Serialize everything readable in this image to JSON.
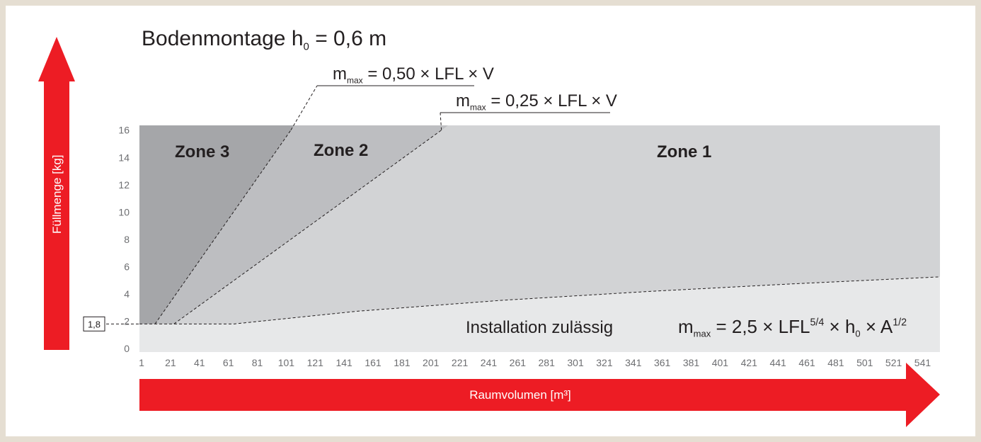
{
  "chart_data": {
    "type": "area",
    "title": [
      {
        "t": "Bodenmontage h"
      },
      {
        "t": "0",
        "shift": "sub"
      },
      {
        "t": " = 0,6 m"
      }
    ],
    "ylabel": "Füllmenge [kg]",
    "xlabel": "Raumvolumen [m³]",
    "xlim": [
      -0.5,
      553
    ],
    "ylim": [
      -0.26,
      16.35
    ],
    "xticks": [
      1,
      21,
      41,
      61,
      81,
      101,
      121,
      141,
      161,
      181,
      201,
      221,
      241,
      261,
      281,
      301,
      321,
      341,
      361,
      381,
      401,
      421,
      441,
      461,
      481,
      501,
      521,
      541
    ],
    "yticks": [
      0,
      2,
      4,
      6,
      8,
      10,
      12,
      14,
      16
    ],
    "threshold": {
      "value": 1.8,
      "label": "1,8"
    },
    "base": {
      "name": "Installation zulässig",
      "color": "#e7e8e9"
    },
    "zones": [
      {
        "name": "Zone 3",
        "color": "#a5a6a9",
        "line": 0
      },
      {
        "name": "Zone 2",
        "color": "#bdbec1",
        "line": 1
      },
      {
        "name": "Zone 1",
        "color": "#d2d3d5",
        "line": 2
      }
    ],
    "lines": [
      {
        "label": [
          {
            "t": "m"
          },
          {
            "t": "max",
            "shift": "sub"
          },
          {
            "t": " = 0,50 × LFL × V"
          }
        ],
        "x": [
          10.3,
          104.2
        ],
        "values": [
          1.8,
          16
        ]
      },
      {
        "label": [
          {
            "t": "m"
          },
          {
            "t": "max",
            "shift": "sub"
          },
          {
            "t": " = 0,25 × LFL × V"
          }
        ],
        "x": [
          23.4,
          208.3
        ],
        "values": [
          1.8,
          16
        ]
      },
      {
        "label": [
          {
            "t": "m"
          },
          {
            "t": "max",
            "shift": "sub"
          },
          {
            "t": " = 2,5 × LFL"
          },
          {
            "t": "5/4",
            "shift": "super"
          },
          {
            "t": " × h"
          },
          {
            "t": "0",
            "shift": "sub"
          },
          {
            "t": " × A"
          },
          {
            "t": "1/2",
            "shift": "super"
          }
        ],
        "x": [
          -0.5,
          65,
          150,
          250,
          350,
          450,
          553
        ],
        "values": [
          1.8,
          1.8,
          2.73,
          3.53,
          4.17,
          4.73,
          5.25
        ]
      }
    ],
    "line_color": "#231f20",
    "arrow_color": "#ed1c24"
  }
}
